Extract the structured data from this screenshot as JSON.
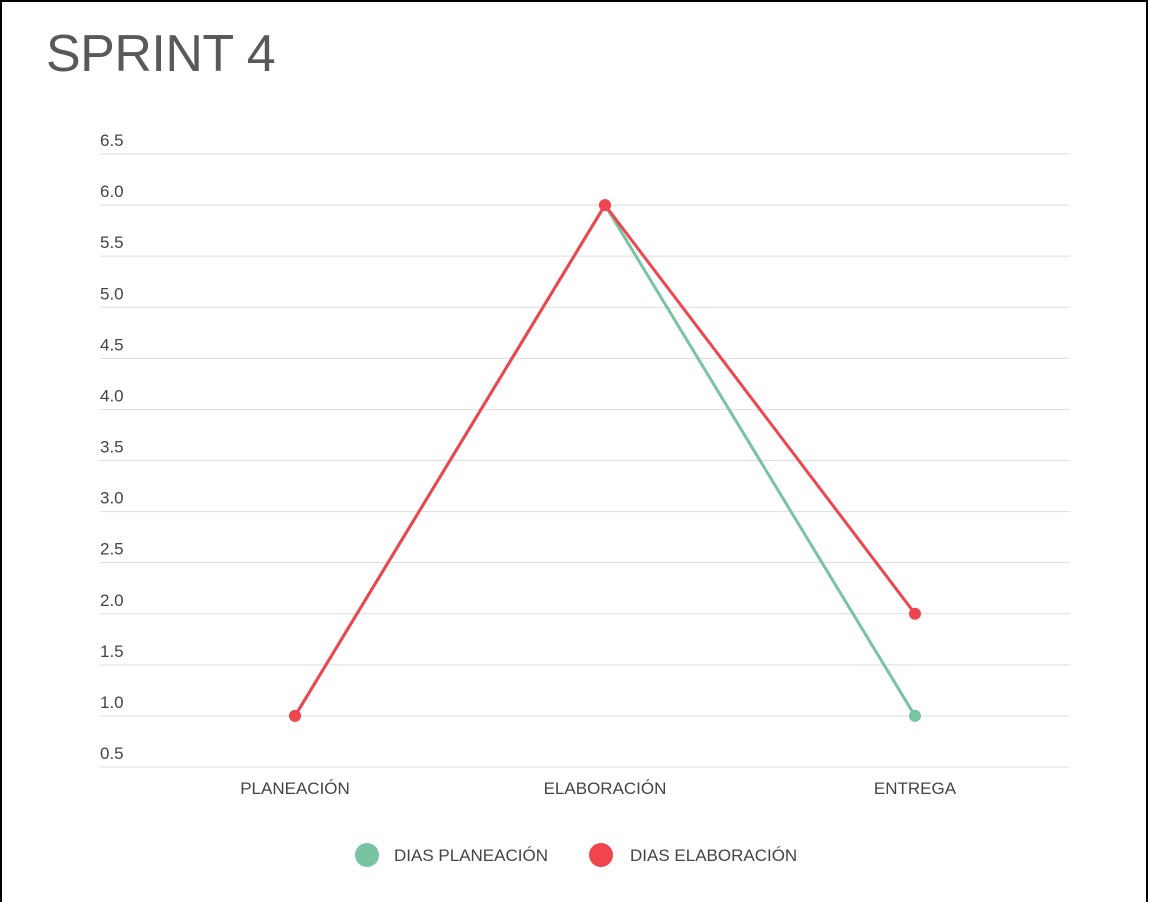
{
  "chart_data": {
    "type": "line",
    "title": "SPRINT 4",
    "categories": [
      "PLANEACIÓN",
      "ELABORACIÓN",
      "ENTREGA"
    ],
    "series": [
      {
        "name": "DIAS PLANEACIÓN",
        "values": [
          1,
          6,
          1
        ],
        "color": "#77c3a2"
      },
      {
        "name": "DIAS ELABORACIÓN",
        "values": [
          1,
          6,
          2
        ],
        "color": "#f0444e"
      }
    ],
    "yticks": [
      "0.5",
      "1.0",
      "1.5",
      "2.0",
      "2.5",
      "3.0",
      "3.5",
      "4.0",
      "4.5",
      "5.0",
      "5.5",
      "6.0",
      "6.5"
    ],
    "ylim": [
      0.5,
      6.5
    ],
    "grid": true,
    "legend_position": "bottom-center",
    "xlabel": "",
    "ylabel": ""
  }
}
